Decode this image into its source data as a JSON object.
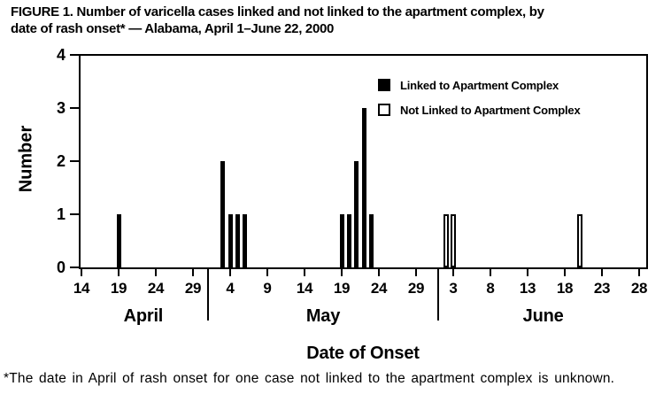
{
  "figure": {
    "title_line1": "FIGURE 1. Number of varicella cases linked and not linked to the apartment complex, by",
    "title_line2": "date of rash onset* — Alabama, April 1–June 22, 2000",
    "footnote": "*The date in April of rash onset for one case not linked to the apartment complex is unknown."
  },
  "colors": {
    "ink": "#000000",
    "background": "#ffffff"
  },
  "chart_data": {
    "type": "bar",
    "title": "FIGURE 1. Number of varicella cases linked and not linked to the apartment complex, by date of rash onset* — Alabama, April 1–June 22, 2000",
    "xlabel": "Date of Onset",
    "ylabel": "Number",
    "ylim": [
      0,
      4
    ],
    "yticks": [
      0,
      1,
      2,
      3,
      4
    ],
    "grid": false,
    "legend_position": "top-right-inside",
    "months": [
      {
        "name": "April",
        "tick_days": [
          14,
          19,
          24,
          29
        ]
      },
      {
        "name": "May",
        "tick_days": [
          4,
          9,
          14,
          19,
          24,
          29
        ]
      },
      {
        "name": "June",
        "tick_days": [
          3,
          8,
          13,
          18,
          23,
          28
        ]
      }
    ],
    "series": [
      {
        "name": "Linked to Apartment Complex",
        "style": "filled",
        "color": "#000000",
        "points": [
          {
            "month": "April",
            "day": 19,
            "count": 1
          },
          {
            "month": "May",
            "day": 3,
            "count": 2
          },
          {
            "month": "May",
            "day": 4,
            "count": 1
          },
          {
            "month": "May",
            "day": 5,
            "count": 1
          },
          {
            "month": "May",
            "day": 6,
            "count": 1
          },
          {
            "month": "May",
            "day": 19,
            "count": 1
          },
          {
            "month": "May",
            "day": 20,
            "count": 1
          },
          {
            "month": "May",
            "day": 21,
            "count": 2
          },
          {
            "month": "May",
            "day": 22,
            "count": 3
          },
          {
            "month": "May",
            "day": 23,
            "count": 1
          }
        ]
      },
      {
        "name": "Not Linked to Apartment Complex",
        "style": "open",
        "color": "#ffffff",
        "points": [
          {
            "month": "June",
            "day": 2,
            "count": 1
          },
          {
            "month": "June",
            "day": 3,
            "count": 1
          },
          {
            "month": "June",
            "day": 20,
            "count": 1
          }
        ]
      }
    ]
  }
}
